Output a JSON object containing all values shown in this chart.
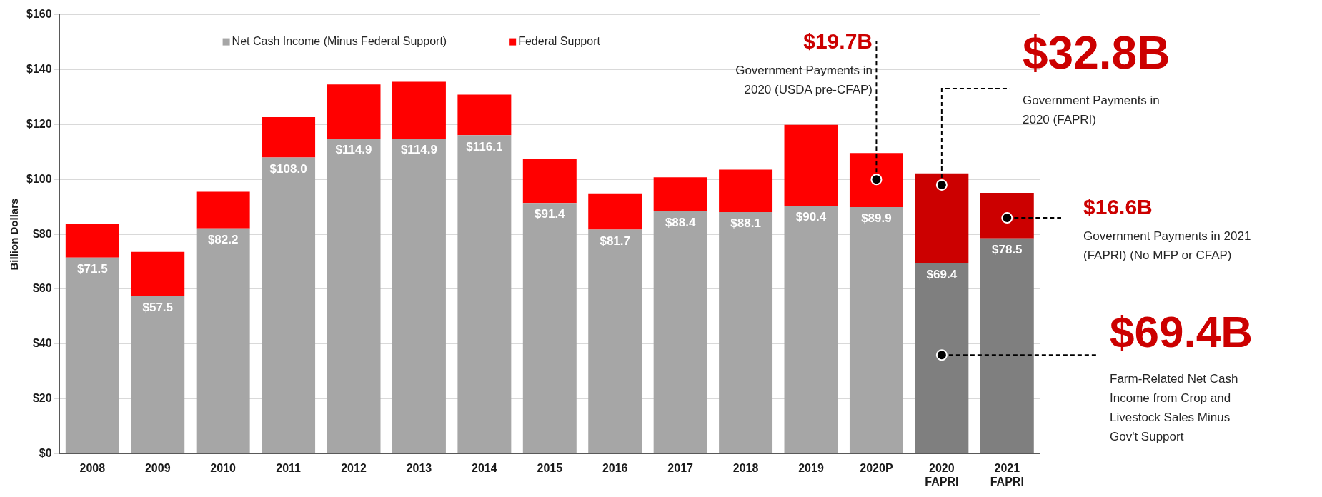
{
  "chart_data": {
    "type": "bar",
    "stacked": true,
    "ylabel": "Billion Dollars",
    "categories": [
      "2008",
      "2009",
      "2010",
      "2011",
      "2012",
      "2013",
      "2014",
      "2015",
      "2016",
      "2017",
      "2018",
      "2019",
      "2020P",
      "2020 FAPRI",
      "2021 FAPRI"
    ],
    "series": [
      {
        "name": "Net Cash Income (Minus Federal Support)",
        "color": "#a6a6a6",
        "colors": [
          "#a6a6a6",
          "#a6a6a6",
          "#a6a6a6",
          "#a6a6a6",
          "#a6a6a6",
          "#a6a6a6",
          "#a6a6a6",
          "#a6a6a6",
          "#a6a6a6",
          "#a6a6a6",
          "#a6a6a6",
          "#a6a6a6",
          "#a6a6a6",
          "#7f7f7f",
          "#7f7f7f"
        ],
        "values": [
          71.5,
          57.5,
          82.2,
          108.0,
          114.9,
          114.9,
          116.1,
          91.4,
          81.7,
          88.4,
          88.1,
          90.4,
          89.9,
          69.4,
          78.5
        ],
        "value_labels": [
          "$71.5",
          "$57.5",
          "$82.2",
          "$108.0",
          "$114.9",
          "$114.9",
          "$116.1",
          "$91.4",
          "$81.7",
          "$88.4",
          "$88.1",
          "$90.4",
          "$89.9",
          "$69.4",
          "$78.5"
        ]
      },
      {
        "name": "Federal Support",
        "color": "#ff0000",
        "colors": [
          "#ff0000",
          "#ff0000",
          "#ff0000",
          "#ff0000",
          "#ff0000",
          "#ff0000",
          "#ff0000",
          "#ff0000",
          "#ff0000",
          "#ff0000",
          "#ff0000",
          "#ff0000",
          "#ff0000",
          "#cc0000",
          "#cc0000"
        ],
        "values": [
          12.4,
          16.1,
          13.3,
          14.7,
          19.7,
          20.7,
          14.8,
          16.0,
          13.2,
          12.4,
          15.5,
          29.5,
          19.7,
          32.8,
          16.6
        ]
      }
    ],
    "ylim": [
      0,
      160
    ],
    "yticks": [
      {
        "value": 0,
        "label": "$0"
      },
      {
        "value": 20,
        "label": "$20"
      },
      {
        "value": 40,
        "label": "$40"
      },
      {
        "value": 60,
        "label": "$60"
      },
      {
        "value": 80,
        "label": "$80"
      },
      {
        "value": 100,
        "label": "$100"
      },
      {
        "value": 120,
        "label": "$120"
      },
      {
        "value": 140,
        "label": "$140"
      },
      {
        "value": 160,
        "label": "$160"
      }
    ],
    "grid": "y",
    "legend": "top left",
    "annotations": [
      {
        "text": "$19.7B\nGovernment Payments in\n2020 (USDA pre-CFAP)",
        "x": "2020P",
        "y": 100
      },
      {
        "text": "$32.8B\nGovernment Payments in\n2020 (FAPRI)",
        "x": "2020 FAPRI",
        "y": 98
      },
      {
        "text": "$16.6B\nGovernment Payments in 2021\n(FAPRI) (No MFP or CFAP)",
        "x": "2021 FAPRI",
        "y": 86
      },
      {
        "text": "$69.4B\nFarm-Related Net Cash\nIncome from Crop and\nLivestock Sales Minus\nGov't Support",
        "x": "2020 FAPRI",
        "y": 36
      }
    ]
  }
}
